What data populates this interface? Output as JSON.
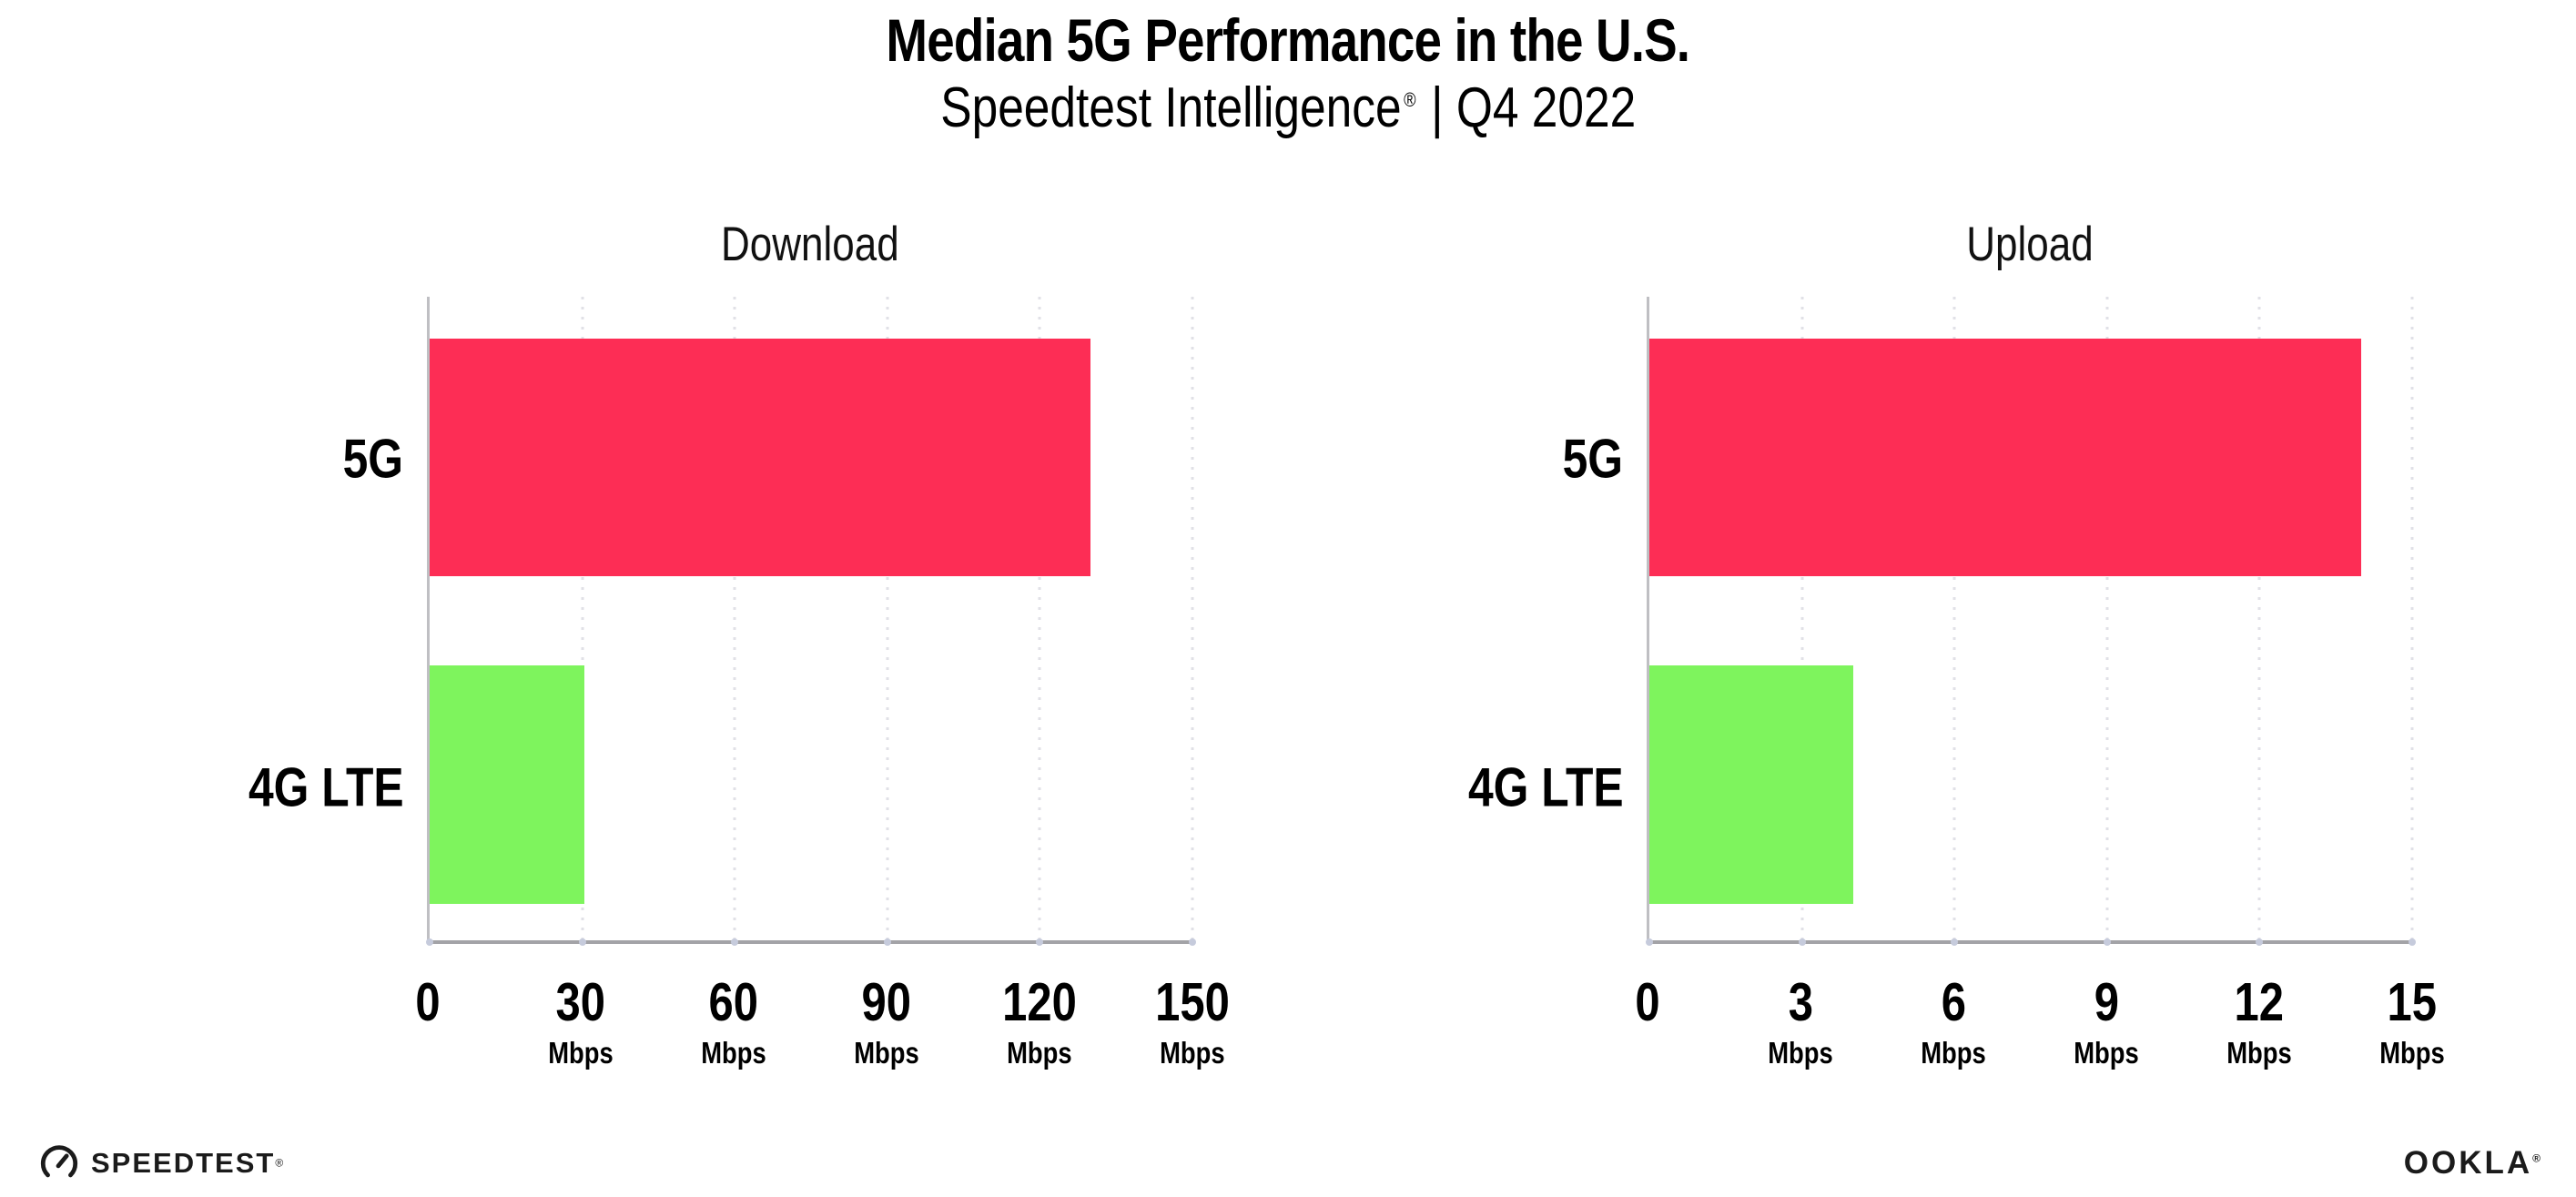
{
  "header": {
    "title": "Median 5G Performance in the U.S.",
    "subtitle_brand": "Speedtest Intelligence",
    "subtitle_mark": "®",
    "subtitle_rest": "| Q4 2022"
  },
  "chart_data": [
    {
      "type": "bar",
      "orientation": "horizontal",
      "title": "Download",
      "categories": [
        "5G",
        "4G LTE"
      ],
      "values": [
        130,
        30.4
      ],
      "unit": "Mbps",
      "xlim": [
        0,
        150
      ],
      "xticks": [
        0,
        30,
        60,
        90,
        120,
        150
      ],
      "bar_colors": [
        "#FD2D55",
        "#7EF45D"
      ],
      "grid": "dotted-vertical",
      "legend": "none"
    },
    {
      "type": "bar",
      "orientation": "horizontal",
      "title": "Upload",
      "categories": [
        "5G",
        "4G LTE"
      ],
      "values": [
        14,
        4
      ],
      "unit": "Mbps",
      "xlim": [
        0,
        15
      ],
      "xticks": [
        0,
        3,
        6,
        9,
        12,
        15
      ],
      "bar_colors": [
        "#FD2D55",
        "#7EF45D"
      ],
      "grid": "dotted-vertical",
      "legend": "none"
    }
  ],
  "footer": {
    "speedtest_text": "SPEEDTEST",
    "speedtest_mark": "®",
    "ookla_text": "OOKLA",
    "ookla_mark": "®"
  },
  "colors": {
    "bar_5g": "#FD2D55",
    "bar_4g_lte": "#7EF45D",
    "axis_bottom": "#A3A3A7",
    "axis_left": "#BFBFC3",
    "gridline": "#E1E1E7"
  }
}
